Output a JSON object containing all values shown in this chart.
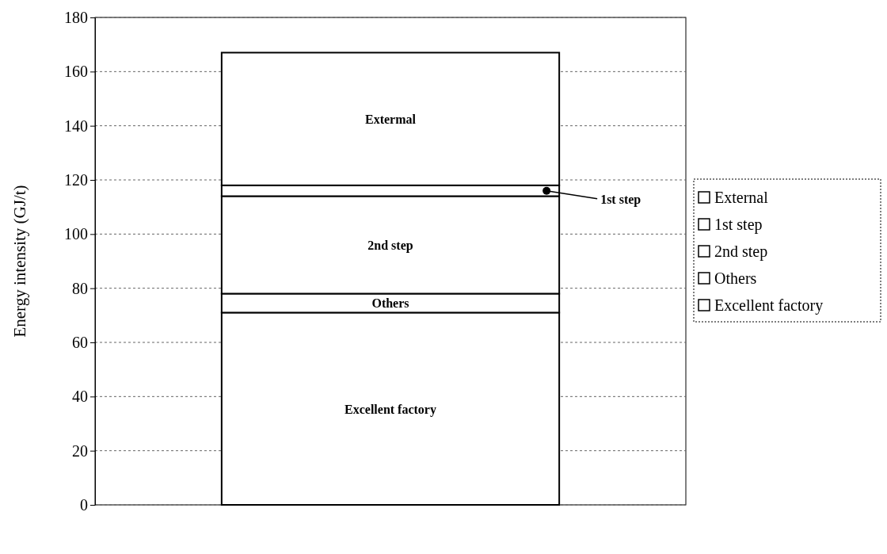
{
  "chart_data": {
    "type": "bar",
    "stacked": true,
    "categories": [
      null
    ],
    "ylabel": "Energy intensity (GJ/t)",
    "ylim": [
      0,
      180
    ],
    "yticks": [
      0,
      20,
      40,
      60,
      80,
      100,
      120,
      140,
      160,
      180
    ],
    "grid": "y",
    "legend": "right",
    "series": [
      {
        "name": "Excellent factory",
        "color": "#ffffff",
        "values": [
          71
        ]
      },
      {
        "name": "Others",
        "color": "#ffffff",
        "values": [
          7
        ]
      },
      {
        "name": "2nd step",
        "color": "#ffffff",
        "values": [
          36
        ]
      },
      {
        "name": "1st step",
        "color": "#ffffff",
        "values": [
          4
        ]
      },
      {
        "name": "External",
        "color": "#ffffff",
        "values": [
          49
        ]
      }
    ],
    "annotations": [
      "Excellent factory",
      "Others",
      "2nd step",
      "1st step",
      "Extermal"
    ]
  }
}
